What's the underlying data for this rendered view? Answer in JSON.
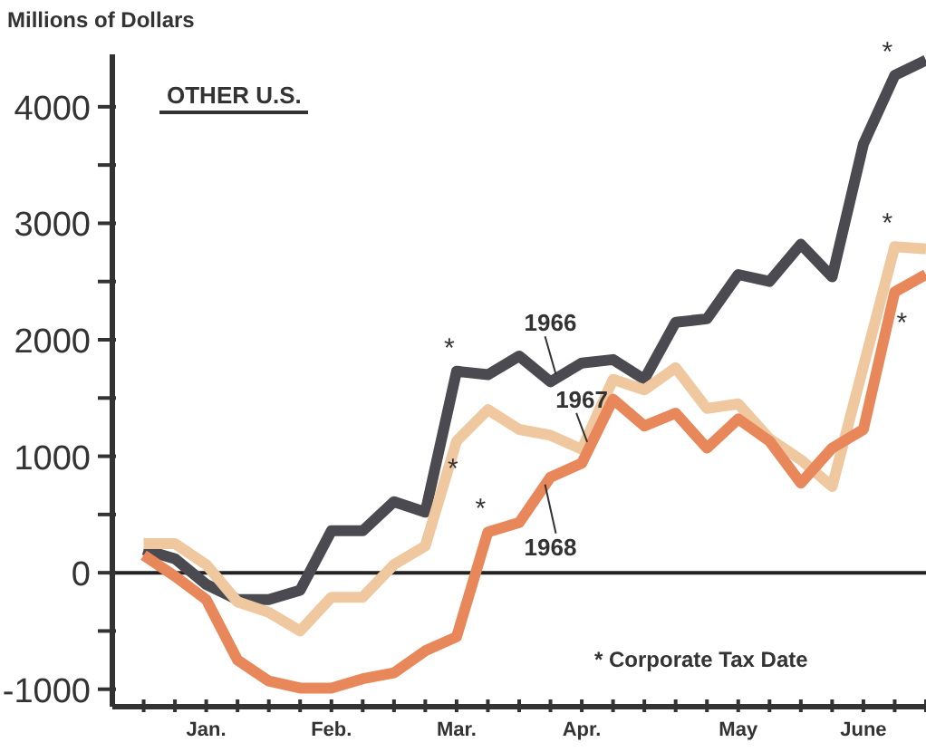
{
  "chart_data": {
    "type": "line",
    "ylabel": "Millions of Dollars",
    "categories": [
      null,
      null,
      "Jan.",
      null,
      null,
      null,
      "Feb.",
      null,
      null,
      null,
      "Mar.",
      null,
      null,
      null,
      "Apr.",
      null,
      null,
      null,
      null,
      "May",
      null,
      null,
      null,
      "June",
      null,
      null
    ],
    "series": [
      {
        "name": "1966",
        "color": "#4a4a50",
        "values": [
          200,
          120,
          -100,
          -230,
          -230,
          -150,
          360,
          360,
          610,
          520,
          1730,
          1700,
          1860,
          1640,
          1800,
          1830,
          1660,
          2150,
          2180,
          2560,
          2500,
          2820,
          2540,
          3680,
          4270,
          4400
        ]
      },
      {
        "name": "1967",
        "color": "#f0c8a0",
        "values": [
          250,
          250,
          70,
          -250,
          -340,
          -500,
          -210,
          -210,
          70,
          230,
          1130,
          1400,
          1230,
          1180,
          1060,
          1660,
          1570,
          1760,
          1410,
          1450,
          1150,
          970,
          740,
          1770,
          2800,
          2780
        ]
      },
      {
        "name": "1968",
        "color": "#e8885a",
        "values": [
          150,
          -30,
          -230,
          -750,
          -930,
          -990,
          -990,
          -910,
          -860,
          -670,
          -550,
          350,
          430,
          820,
          940,
          1490,
          1260,
          1370,
          1070,
          1320,
          1130,
          770,
          1070,
          1230,
          2410,
          2560
        ]
      }
    ],
    "ylim": [
      -1150,
      4450
    ],
    "yticks": [
      -1000,
      {
        "value": -500,
        "label": null
      },
      0,
      {
        "value": 500,
        "label": null
      },
      1000,
      {
        "value": 1500,
        "label": null
      },
      2000,
      {
        "value": 2500,
        "label": null
      },
      3000,
      {
        "value": 3500,
        "label": null
      },
      4000
    ],
    "ref_lines": [
      {
        "axis": "y",
        "value": 0
      }
    ],
    "annotations": [
      "OTHER U.S.",
      "* Corporate Tax Date",
      {
        "text": "*",
        "y": 1730
      },
      {
        "text": "*",
        "y": 4270
      },
      {
        "text": "*",
        "y": 1130
      },
      {
        "text": "*",
        "y": 2800
      },
      {
        "text": "*",
        "y": 350
      },
      {
        "text": "*",
        "y": 2410
      }
    ],
    "grid": false,
    "legend": false,
    "marker": "none",
    "line_style": "solid"
  }
}
